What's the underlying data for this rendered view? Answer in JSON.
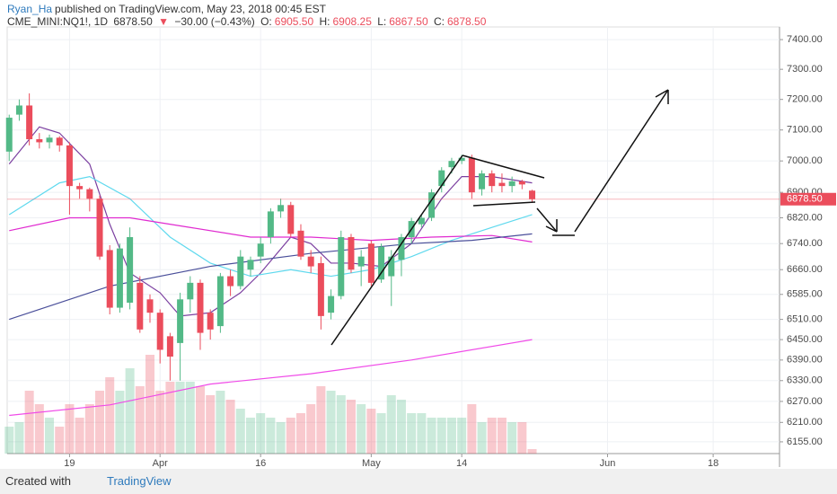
{
  "header": {
    "author": "Ryan_Ha",
    "published": "published on TradingView.com, May 23, 2018 00:45 EST",
    "symbol": "CME_MINI:NQ1!, 1D",
    "last": "6878.50",
    "arrow": "▼",
    "change": "−30.00 (−0.43%)",
    "o_label": "O:",
    "o": "6905.50",
    "h_label": "H:",
    "h": "6908.25",
    "l_label": "L:",
    "l": "6867.50",
    "c_label": "C:",
    "c": "6878.50"
  },
  "footer": {
    "created": "Created with",
    "brand": "TradingView"
  },
  "chart_data": {
    "type": "candlestick",
    "log_scale": true,
    "grid": true,
    "up_color": "#53b987",
    "down_color": "#eb4d5c",
    "x": [
      0,
      1,
      2,
      3,
      4,
      5,
      6,
      7,
      8,
      9,
      10,
      11,
      12,
      13,
      14,
      15,
      16,
      17,
      18,
      19,
      20,
      21,
      22,
      23,
      24,
      25,
      26,
      27,
      28,
      29,
      30,
      31,
      32,
      33,
      34,
      35,
      36,
      37,
      38,
      39,
      40,
      41,
      42,
      43,
      44,
      45,
      46,
      47,
      48,
      49,
      50,
      51,
      52
    ],
    "open": [
      7030,
      7150,
      7180,
      7070,
      7060,
      7075,
      7050,
      6920,
      6910,
      6880,
      6720,
      6545,
      6560,
      6620,
      6570,
      6530,
      6460,
      6440,
      6570,
      6620,
      6530,
      6490,
      6640,
      6610,
      6660,
      6700,
      6760,
      6840,
      6860,
      6780,
      6700,
      6680,
      6530,
      6580,
      6760,
      6670,
      6740,
      6630,
      6640,
      6690,
      6760,
      6800,
      6820,
      6920,
      6980,
      7000,
      7010,
      6910,
      6960,
      6930,
      6920,
      6935,
      6905.5
    ],
    "high": [
      7150,
      7200,
      7220,
      7090,
      7085,
      7080,
      7060,
      6930,
      6915,
      6890,
      6735,
      6740,
      6790,
      6640,
      6585,
      6540,
      6470,
      6590,
      6640,
      6630,
      6540,
      6650,
      6660,
      6720,
      6700,
      6760,
      6850,
      6880,
      6870,
      6800,
      6720,
      6700,
      6600,
      6780,
      6770,
      6720,
      6750,
      6740,
      6720,
      6770,
      6820,
      6830,
      6910,
      6980,
      7010,
      7020,
      7020,
      6970,
      6970,
      6960,
      6950,
      6940,
      6908.25
    ],
    "low": [
      7000,
      7130,
      7050,
      7040,
      7040,
      7030,
      6830,
      6880,
      6840,
      6690,
      6525,
      6530,
      6540,
      6470,
      6500,
      6380,
      6330,
      6330,
      6530,
      6420,
      6450,
      6470,
      6580,
      6600,
      6640,
      6680,
      6740,
      6820,
      6760,
      6690,
      6650,
      6480,
      6510,
      6570,
      6650,
      6610,
      6610,
      6620,
      6550,
      6640,
      6740,
      6790,
      6810,
      6900,
      6960,
      6990,
      6880,
      6890,
      6900,
      6900,
      6900,
      6910,
      6867.5
    ],
    "close": [
      7140,
      7180,
      7070,
      7060,
      7075,
      7050,
      6920,
      6910,
      6880,
      6700,
      6545,
      6725,
      6760,
      6480,
      6530,
      6420,
      6400,
      6570,
      6620,
      6470,
      6480,
      6640,
      6610,
      6700,
      6690,
      6740,
      6840,
      6860,
      6770,
      6700,
      6670,
      6520,
      6580,
      6760,
      6660,
      6700,
      6620,
      6730,
      6700,
      6760,
      6810,
      6820,
      6900,
      6970,
      7000,
      7010,
      6900,
      6960,
      6920,
      6920,
      6935,
      6925,
      6878.5
    ],
    "volume": [
      30,
      35,
      70,
      55,
      40,
      30,
      55,
      40,
      55,
      70,
      85,
      70,
      95,
      75,
      110,
      70,
      80,
      80,
      80,
      75,
      65,
      70,
      60,
      50,
      40,
      45,
      40,
      35,
      40,
      45,
      55,
      75,
      70,
      65,
      60,
      55,
      50,
      45,
      65,
      60,
      45,
      45,
      40,
      40,
      40,
      40,
      55,
      35,
      40,
      40,
      35,
      35,
      5
    ],
    "series": [
      {
        "color": "#7b3fa0",
        "x": [
          0,
          3,
          5,
          8,
          10,
          12,
          15,
          17,
          20,
          23,
          25,
          28,
          30,
          32,
          34,
          37,
          40,
          43,
          45,
          48,
          52
        ],
        "values": [
          6990,
          7110,
          7090,
          6990,
          6800,
          6650,
          6590,
          6520,
          6530,
          6590,
          6650,
          6760,
          6740,
          6680,
          6680,
          6670,
          6740,
          6880,
          6950,
          6950,
          6930
        ]
      },
      {
        "color": "#5fd9ee",
        "x": [
          0,
          5,
          8,
          12,
          16,
          20,
          24,
          28,
          32,
          36,
          40,
          44,
          48,
          52
        ],
        "values": [
          6830,
          6930,
          6950,
          6880,
          6760,
          6680,
          6640,
          6660,
          6640,
          6660,
          6700,
          6750,
          6790,
          6830
        ]
      },
      {
        "color": "#e02bd0",
        "x": [
          0,
          6,
          12,
          18,
          24,
          30,
          36,
          42,
          48,
          52
        ],
        "values": [
          6780,
          6820,
          6820,
          6790,
          6760,
          6760,
          6750,
          6760,
          6765,
          6745
        ]
      },
      {
        "color": "#4a4f9a",
        "x": [
          0,
          10,
          20,
          30,
          40,
          46,
          52
        ],
        "values": [
          6510,
          6610,
          6670,
          6710,
          6740,
          6750,
          6770
        ]
      },
      {
        "color": "#f04be8",
        "x": [
          0,
          10,
          20,
          30,
          40,
          52
        ],
        "values": [
          6230,
          6260,
          6320,
          6350,
          6390,
          6450
        ]
      }
    ],
    "last_price_label": "6878.50",
    "xlim": [
      -0.2,
      76.6
    ],
    "xticks": [
      {
        "value": 6,
        "label": "19"
      },
      {
        "value": 15,
        "label": "Apr"
      },
      {
        "value": 25,
        "label": "16"
      },
      {
        "value": 36,
        "label": "May"
      },
      {
        "value": 45,
        "label": "14"
      },
      {
        "value": 59.5,
        "label": "Jun"
      },
      {
        "value": 70,
        "label": "18"
      }
    ],
    "ylim": [
      6122,
      7443
    ],
    "yticks": [
      {
        "value": 6155,
        "label": "6155.00"
      },
      {
        "value": 6210,
        "label": "6210.00"
      },
      {
        "value": 6270,
        "label": "6270.00"
      },
      {
        "value": 6330,
        "label": "6330.00"
      },
      {
        "value": 6390,
        "label": "6390.00"
      },
      {
        "value": 6450,
        "label": "6450.00"
      },
      {
        "value": 6510,
        "label": "6510.00"
      },
      {
        "value": 6585,
        "label": "6585.00"
      },
      {
        "value": 6660,
        "label": "6660.00"
      },
      {
        "value": 6740,
        "label": "6740.00"
      },
      {
        "value": 6820,
        "label": "6820.00"
      },
      {
        "value": 6900,
        "label": "6900.00"
      },
      {
        "value": 7000,
        "label": "7000.00"
      },
      {
        "value": 7100,
        "label": "7100.00"
      },
      {
        "value": 7200,
        "label": "7200.00"
      },
      {
        "value": 7300,
        "label": "7300.00"
      },
      {
        "value": 7400,
        "label": "7400.00"
      }
    ]
  }
}
